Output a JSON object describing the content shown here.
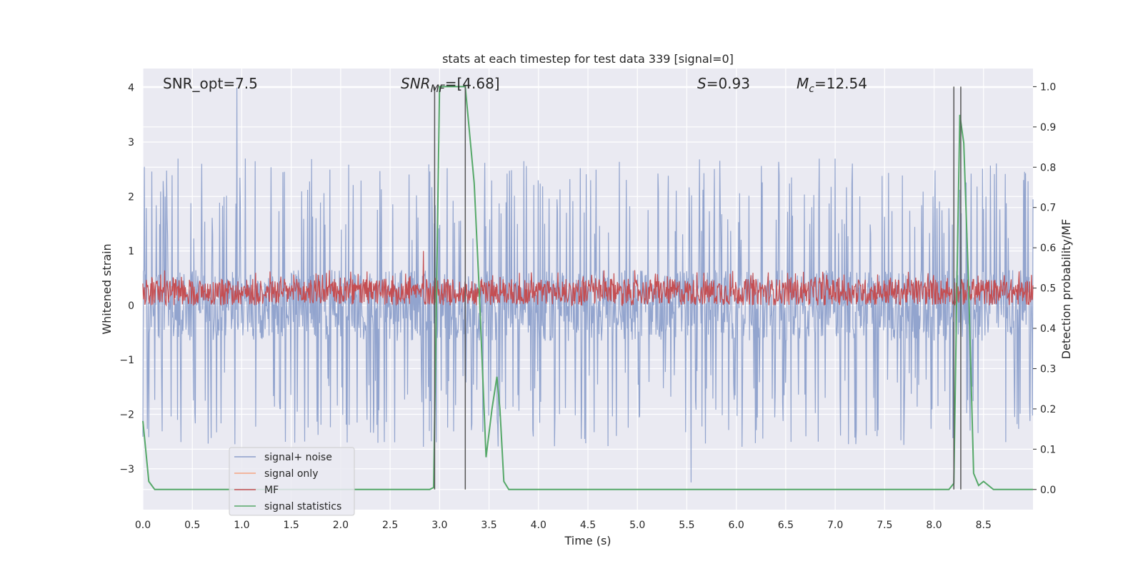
{
  "chart_data": {
    "type": "line",
    "title": "stats at each timestep for test data 339 [signal=0]",
    "xlabel": "Time (s)",
    "ylabel_left": "Whitened strain",
    "ylabel_right": "Detection probability/MF",
    "xlim": [
      0.0,
      9.0
    ],
    "ylim_left": [
      -3.75,
      4.35
    ],
    "ylim_right": [
      -0.05,
      1.045
    ],
    "x_ticks": [
      "0.0",
      "0.5",
      "1.0",
      "1.5",
      "2.0",
      "2.5",
      "3.0",
      "3.5",
      "4.0",
      "4.5",
      "5.0",
      "5.5",
      "6.0",
      "6.5",
      "7.0",
      "7.5",
      "8.0",
      "8.5"
    ],
    "x_tick_values": [
      0.0,
      0.5,
      1.0,
      1.5,
      2.0,
      2.5,
      3.0,
      3.5,
      4.0,
      4.5,
      5.0,
      5.5,
      6.0,
      6.5,
      7.0,
      7.5,
      8.0,
      8.5
    ],
    "y_ticks_left": [
      "4",
      "3",
      "2",
      "1",
      "0",
      "−1",
      "−2",
      "−3"
    ],
    "y_tick_values_left": [
      4,
      3,
      2,
      1,
      0,
      -1,
      -2,
      -3
    ],
    "y_ticks_right": [
      "1.0",
      "0.9",
      "0.8",
      "0.7",
      "0.6",
      "0.5",
      "0.4",
      "0.3",
      "0.2",
      "0.1",
      "0.0"
    ],
    "y_tick_values_right": [
      1.0,
      0.9,
      0.8,
      0.7,
      0.6,
      0.5,
      0.4,
      0.3,
      0.2,
      0.1,
      0.0
    ],
    "grid": true,
    "legend_placement": "lower-left",
    "annotations": {
      "snr_opt": "SNR_opt=7.5",
      "snr_mf_name": "SNR",
      "snr_mf_sub": "MF",
      "snr_mf_val": "=[4.68]",
      "s_name": "S",
      "s_val": "=0.93",
      "mc_name": "M",
      "mc_sub": "c",
      "mc_val": "=12.54"
    },
    "vlines_x": [
      2.95,
      3.26,
      8.2,
      8.27
    ],
    "series": [
      {
        "name": "signal+ noise",
        "color": "#8da0cb",
        "axis": "left",
        "kind": "noise",
        "band": [
          -0.65,
          0.65
        ],
        "peak_range": [
          1.2,
          2.7
        ],
        "trough_range": [
          -2.6,
          -1.2
        ],
        "max": 4.0,
        "min": -3.25
      },
      {
        "name": "signal only",
        "color": "#f4a582",
        "axis": "left",
        "values": []
      },
      {
        "name": "MF",
        "color": "#c44e52",
        "axis": "left",
        "kind": "noise",
        "band": [
          0.0,
          0.65
        ],
        "max": 1.0
      },
      {
        "name": "signal statistics",
        "color": "#55a868",
        "axis": "right",
        "x": [
          0.0,
          0.02,
          0.06,
          0.12,
          0.2,
          2.9,
          2.94,
          2.97,
          3.0,
          3.26,
          3.35,
          3.4,
          3.47,
          3.53,
          3.58,
          3.61,
          3.65,
          3.7,
          8.15,
          8.2,
          8.23,
          8.26,
          8.3,
          8.35,
          8.4,
          8.45,
          8.5,
          8.55,
          8.6,
          8.65,
          9.0
        ],
        "y": [
          0.17,
          0.12,
          0.02,
          0.0,
          0.0,
          0.0,
          0.005,
          0.5,
          1.0,
          1.0,
          0.76,
          0.5,
          0.08,
          0.2,
          0.28,
          0.2,
          0.02,
          0.0,
          0.0,
          0.015,
          0.5,
          0.93,
          0.86,
          0.5,
          0.04,
          0.01,
          0.02,
          0.01,
          0.0,
          0.0,
          0.0
        ]
      }
    ]
  }
}
